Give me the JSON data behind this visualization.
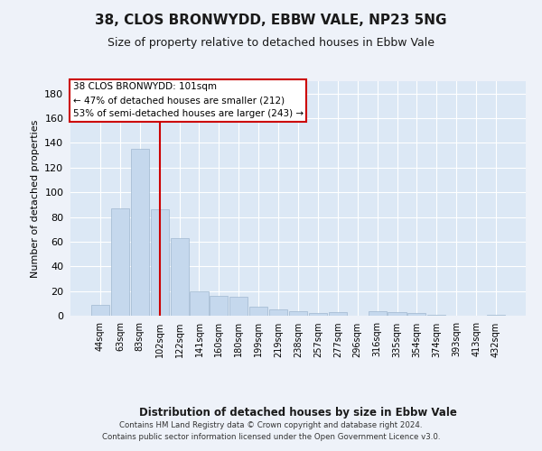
{
  "title_line1": "38, CLOS BRONWYDD, EBBW VALE, NP23 5NG",
  "title_line2": "Size of property relative to detached houses in Ebbw Vale",
  "xlabel": "Distribution of detached houses by size in Ebbw Vale",
  "ylabel": "Number of detached properties",
  "categories": [
    "44sqm",
    "63sqm",
    "83sqm",
    "102sqm",
    "122sqm",
    "141sqm",
    "160sqm",
    "180sqm",
    "199sqm",
    "219sqm",
    "238sqm",
    "257sqm",
    "277sqm",
    "296sqm",
    "316sqm",
    "335sqm",
    "354sqm",
    "374sqm",
    "393sqm",
    "413sqm",
    "432sqm"
  ],
  "values": [
    9,
    87,
    135,
    86,
    63,
    20,
    16,
    15,
    7,
    5,
    4,
    2,
    3,
    0,
    4,
    3,
    2,
    1,
    0,
    0,
    1
  ],
  "bar_color": "#c5d8ed",
  "bar_edgecolor": "#a0b8d0",
  "vline_x": 3.0,
  "vline_color": "#cc0000",
  "annotation_text": "38 CLOS BRONWYDD: 101sqm\n← 47% of detached houses are smaller (212)\n53% of semi-detached houses are larger (243) →",
  "annotation_box_color": "#cc0000",
  "ylim": [
    0,
    190
  ],
  "yticks": [
    0,
    20,
    40,
    60,
    80,
    100,
    120,
    140,
    160,
    180
  ],
  "footer_line1": "Contains HM Land Registry data © Crown copyright and database right 2024.",
  "footer_line2": "Contains public sector information licensed under the Open Government Licence v3.0.",
  "bg_color": "#eef2f9",
  "plot_bg_color": "#dce8f5"
}
